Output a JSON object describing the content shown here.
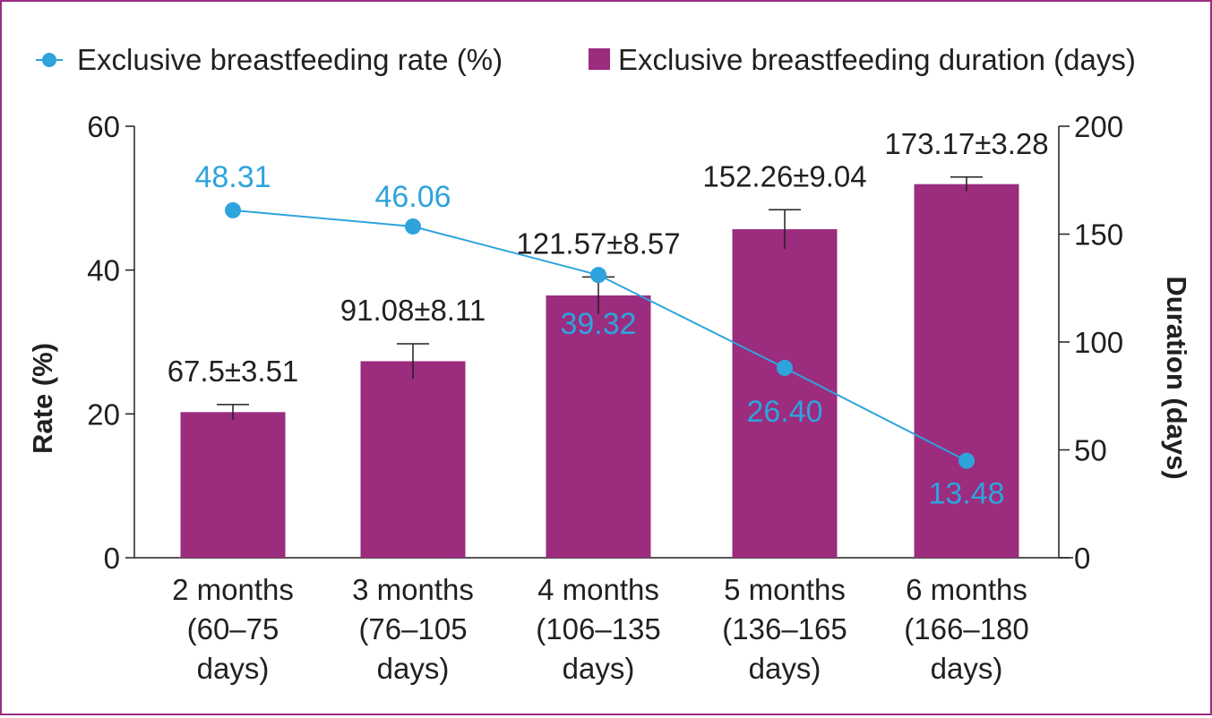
{
  "legend": {
    "rate_label": "Exclusive breastfeeding rate (%)",
    "duration_label": "Exclusive breastfeeding duration (days)"
  },
  "colors": {
    "bar": "#9b2c7e",
    "line": "#2ea3dc",
    "axis": "#231f20",
    "text": "#231f20",
    "border": "#9b2c83"
  },
  "chart_data": {
    "type": "bar",
    "categories": [
      [
        "2 months",
        "(60–75",
        "days)"
      ],
      [
        "3 months",
        "(76–105",
        "days)"
      ],
      [
        "4 months",
        "(106–135",
        "days)"
      ],
      [
        "5 months",
        "(136–165",
        "days)"
      ],
      [
        "6 months",
        "(166–180",
        "days)"
      ]
    ],
    "series": [
      {
        "name": "Exclusive breastfeeding duration (days)",
        "type": "bar",
        "axis": "right",
        "values": [
          67.5,
          91.08,
          121.57,
          152.26,
          173.17
        ],
        "error": [
          3.51,
          8.11,
          8.57,
          9.04,
          3.28
        ],
        "labels": [
          "67.5±3.51",
          "91.08±8.11",
          "121.57±8.57",
          "152.26±9.04",
          "173.17±3.28"
        ]
      },
      {
        "name": "Exclusive breastfeeding rate (%)",
        "type": "line",
        "axis": "left",
        "values": [
          48.31,
          46.06,
          39.32,
          26.4,
          13.48
        ],
        "labels": [
          "48.31",
          "46.06",
          "39.32",
          "26.40",
          "13.48"
        ]
      }
    ],
    "ylabel": "Rate (%)",
    "y2label": "Duration (days)",
    "ylim": [
      0,
      60
    ],
    "y2lim": [
      0,
      200
    ],
    "yticks": [
      0,
      20,
      40,
      60
    ],
    "y2ticks": [
      0,
      50,
      100,
      150,
      200
    ],
    "grid": false,
    "legend_position": "top"
  }
}
